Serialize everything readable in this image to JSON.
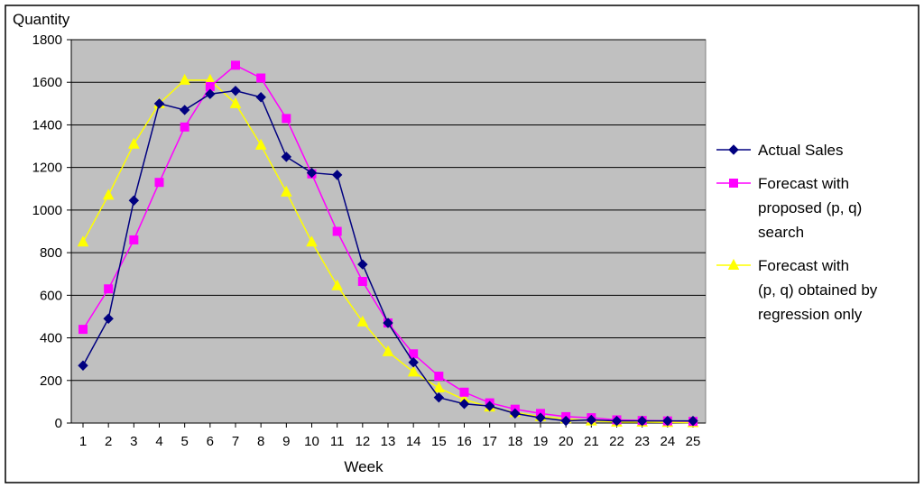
{
  "chart_data": {
    "type": "line",
    "title": "",
    "xlabel": "Week",
    "ylabel": "Quantity",
    "ylim": [
      0,
      1800
    ],
    "yticks": [
      0,
      200,
      400,
      600,
      800,
      1000,
      1200,
      1400,
      1600,
      1800
    ],
    "grid": true,
    "legend_position": "right",
    "plot_background": "#c0c0c0",
    "x": [
      1,
      2,
      3,
      4,
      5,
      6,
      7,
      8,
      9,
      10,
      11,
      12,
      13,
      14,
      15,
      16,
      17,
      18,
      19,
      20,
      21,
      22,
      23,
      24,
      25
    ],
    "series": [
      {
        "name": "Actual Sales",
        "legend_lines": [
          "Actual Sales"
        ],
        "color": "#000080",
        "marker": "diamond",
        "values": [
          270,
          490,
          1045,
          1500,
          1470,
          1545,
          1560,
          1530,
          1250,
          1175,
          1165,
          745,
          470,
          285,
          120,
          90,
          80,
          45,
          25,
          10,
          15,
          10,
          10,
          10,
          10
        ]
      },
      {
        "name": "Forecast with proposed (p, q) search",
        "legend_lines": [
          "Forecast with",
          "proposed (p, q)",
          "search"
        ],
        "color": "#ff00ff",
        "marker": "square",
        "values": [
          440,
          630,
          860,
          1130,
          1390,
          1580,
          1680,
          1620,
          1430,
          1170,
          900,
          665,
          470,
          325,
          220,
          145,
          95,
          65,
          45,
          30,
          25,
          15,
          12,
          10,
          8
        ]
      },
      {
        "name": "Forecast with (p, q) obtained by regression only",
        "legend_lines": [
          "Forecast with",
          "(p, q) obtained by",
          "regression only"
        ],
        "color": "#ffff00",
        "marker": "triangle",
        "values": [
          850,
          1070,
          1310,
          1500,
          1610,
          1610,
          1500,
          1305,
          1085,
          850,
          645,
          475,
          335,
          240,
          165,
          110,
          75,
          50,
          30,
          20,
          10,
          5,
          5,
          3,
          2
        ]
      }
    ]
  }
}
